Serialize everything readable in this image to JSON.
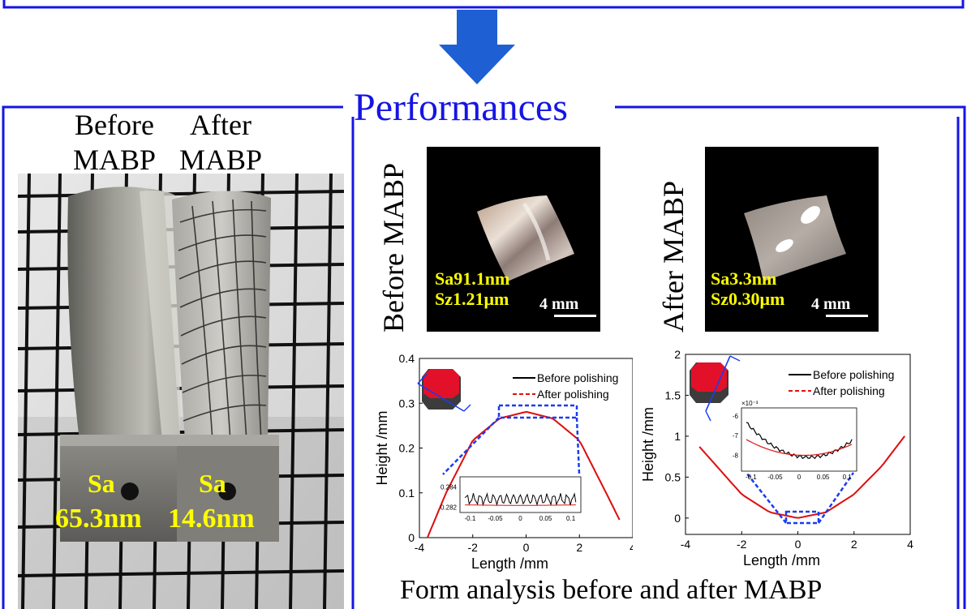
{
  "colors": {
    "frame": "#1515e6",
    "arrow": "#1f5fd4",
    "label": "#ffff00",
    "before_line": "#000000",
    "after_line": "#e01010",
    "zoom_box": "#1a3cf0",
    "sample_red": "#e3102a"
  },
  "section_title": "Performances",
  "left_panel": {
    "label_before": "Before\nMABP",
    "label_after": "After\nMABP",
    "sa_label_left": "Sa",
    "sa_value_left": "65.3nm",
    "sa_label_right": "Sa",
    "sa_value_right": "14.6nm"
  },
  "sample_before": {
    "side_label": "Before MABP",
    "sa": "Sa91.1nm",
    "sz": "Sz1.21μm",
    "scale": "4 mm"
  },
  "sample_after": {
    "side_label": "After MABP",
    "sa": "Sa3.3nm",
    "sz": "Sz0.30μm",
    "scale": "4 mm"
  },
  "footer_caption": "Form analysis before and after MABP",
  "chart_data": [
    {
      "type": "line",
      "xlabel": "Length /mm",
      "ylabel": "Height /mm",
      "xlim": [
        -4,
        4
      ],
      "ylim": [
        0,
        0.4
      ],
      "xticks": [
        "-4",
        "-2",
        "0",
        "2",
        "4"
      ],
      "yticks": [
        "0",
        "0.1",
        "0.2",
        "0.3",
        "0.4"
      ],
      "legend": "top-right",
      "series": [
        {
          "name": "Before polishing",
          "style": "solid",
          "x": [
            -3.7,
            -3,
            -2,
            -1,
            0,
            1,
            2,
            3,
            3.5
          ],
          "y": [
            0.0,
            0.1,
            0.217,
            0.266,
            0.281,
            0.266,
            0.217,
            0.1,
            0.04
          ]
        },
        {
          "name": "After polishing",
          "style": "dashed",
          "x": [
            -3.7,
            -3,
            -2,
            -1,
            0,
            1,
            2,
            3,
            3.5
          ],
          "y": [
            0.0,
            0.1,
            0.217,
            0.266,
            0.281,
            0.266,
            0.217,
            0.1,
            0.04
          ]
        }
      ],
      "inset": {
        "xlim": [
          -0.12,
          0.12
        ],
        "ylim": [
          0.2815,
          0.285
        ],
        "xticks": [
          "-0.1",
          "-0.05",
          "0",
          "0.05",
          "0.1"
        ],
        "yticks": [
          "0.284",
          "0.282"
        ],
        "before_level": 0.2828,
        "after_level": 0.2822
      }
    },
    {
      "type": "line",
      "xlabel": "Length /mm",
      "ylabel": "Height /mm",
      "xlim": [
        -4,
        4
      ],
      "ylim": [
        -0.2,
        2
      ],
      "xticks": [
        "-4",
        "-2",
        "0",
        "2",
        "4"
      ],
      "yticks": [
        "0",
        "0.5",
        "1",
        "1.5",
        "2"
      ],
      "legend": "top-right",
      "series": [
        {
          "name": "Before polishing",
          "style": "solid",
          "x": [
            -3.5,
            -2,
            -1,
            0,
            1,
            2,
            3,
            3.8
          ],
          "y": [
            0.87,
            0.29,
            0.07,
            0.0,
            0.07,
            0.29,
            0.64,
            1.0
          ]
        },
        {
          "name": "After polishing",
          "style": "dashed",
          "x": [
            -3.5,
            -2,
            -1,
            0,
            1,
            2,
            3,
            3.8
          ],
          "y": [
            0.87,
            0.29,
            0.07,
            0.0,
            0.07,
            0.29,
            0.64,
            1.0
          ]
        }
      ],
      "inset": {
        "exponent": "×10⁻³",
        "xlim": [
          -0.12,
          0.12
        ],
        "ylim": [
          -8.8,
          -5.6
        ],
        "xticks": [
          "-0.1",
          "-0.05",
          "0",
          "0.05",
          "0.1"
        ],
        "yticks": [
          "-6",
          "-7",
          "-8"
        ]
      }
    }
  ]
}
